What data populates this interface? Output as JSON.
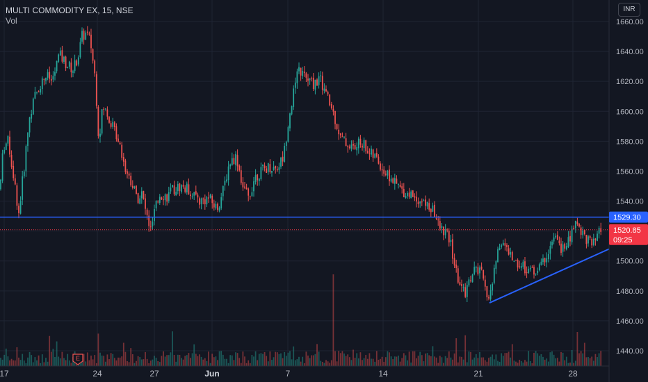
{
  "header": {
    "symbol_line": "MULTI COMMODITY EX, 15, NSE",
    "volume_label": "Vol"
  },
  "currency_button": "INR",
  "colors": {
    "background": "#131722",
    "grid": "#1f2433",
    "up_candle": "#26a69a",
    "down_candle": "#ef5350",
    "line_blue": "#2962ff",
    "price_red": "#f23645"
  },
  "price_tags": {
    "horizontal_line": "1529.30",
    "last_price": "1520.85",
    "countdown": "09:25"
  },
  "earnings_marker": "E",
  "chart_data": {
    "type": "candlestick",
    "title": "MULTI COMMODITY EX, 15, NSE",
    "y_axis": {
      "range": [
        1432,
        1668
      ],
      "ticks": [
        1440,
        1460,
        1480,
        1500,
        1520,
        1540,
        1560,
        1580,
        1600,
        1620,
        1640,
        1660
      ]
    },
    "x_axis": {
      "ticks": [
        {
          "label": "17",
          "bold": false
        },
        {
          "label": "24",
          "bold": false
        },
        {
          "label": "27",
          "bold": false
        },
        {
          "label": "Jun",
          "bold": true
        },
        {
          "label": "7",
          "bold": false
        },
        {
          "label": "14",
          "bold": false
        },
        {
          "label": "21",
          "bold": false
        },
        {
          "label": "28",
          "bold": false
        }
      ]
    },
    "price_path": [
      [
        0,
        1548
      ],
      [
        5,
        1577
      ],
      [
        12,
        1580
      ],
      [
        20,
        1555
      ],
      [
        27,
        1532
      ],
      [
        34,
        1560
      ],
      [
        42,
        1595
      ],
      [
        50,
        1610
      ],
      [
        58,
        1618
      ],
      [
        66,
        1624
      ],
      [
        75,
        1620
      ],
      [
        85,
        1638
      ],
      [
        95,
        1632
      ],
      [
        105,
        1628
      ],
      [
        112,
        1636
      ],
      [
        118,
        1650
      ],
      [
        124,
        1652
      ],
      [
        130,
        1647
      ],
      [
        137,
        1622
      ],
      [
        142,
        1582
      ],
      [
        148,
        1603
      ],
      [
        155,
        1598
      ],
      [
        162,
        1590
      ],
      [
        172,
        1580
      ],
      [
        180,
        1562
      ],
      [
        190,
        1552
      ],
      [
        197,
        1542
      ],
      [
        204,
        1545
      ],
      [
        210,
        1532
      ],
      [
        217,
        1520
      ],
      [
        222,
        1532
      ],
      [
        230,
        1545
      ],
      [
        240,
        1543
      ],
      [
        250,
        1548
      ],
      [
        262,
        1550
      ],
      [
        276,
        1546
      ],
      [
        288,
        1540
      ],
      [
        300,
        1542
      ],
      [
        312,
        1535
      ],
      [
        320,
        1545
      ],
      [
        330,
        1566
      ],
      [
        340,
        1570
      ],
      [
        350,
        1548
      ],
      [
        358,
        1542
      ],
      [
        366,
        1556
      ],
      [
        376,
        1560
      ],
      [
        386,
        1563
      ],
      [
        398,
        1562
      ],
      [
        408,
        1570
      ],
      [
        415,
        1595
      ],
      [
        422,
        1612
      ],
      [
        430,
        1628
      ],
      [
        440,
        1622
      ],
      [
        450,
        1618
      ],
      [
        460,
        1622
      ],
      [
        470,
        1610
      ],
      [
        480,
        1598
      ],
      [
        490,
        1582
      ],
      [
        500,
        1578
      ],
      [
        510,
        1575
      ],
      [
        520,
        1580
      ],
      [
        532,
        1572
      ],
      [
        542,
        1568
      ],
      [
        552,
        1560
      ],
      [
        562,
        1555
      ],
      [
        572,
        1550
      ],
      [
        582,
        1546
      ],
      [
        595,
        1544
      ],
      [
        605,
        1540
      ],
      [
        615,
        1537
      ],
      [
        625,
        1532
      ],
      [
        632,
        1522
      ],
      [
        640,
        1520
      ],
      [
        648,
        1512
      ],
      [
        656,
        1492
      ],
      [
        662,
        1484
      ],
      [
        668,
        1478
      ],
      [
        676,
        1488
      ],
      [
        684,
        1495
      ],
      [
        692,
        1492
      ],
      [
        698,
        1480
      ],
      [
        704,
        1475
      ],
      [
        710,
        1490
      ],
      [
        716,
        1508
      ],
      [
        722,
        1514
      ],
      [
        730,
        1506
      ],
      [
        740,
        1500
      ],
      [
        750,
        1497
      ],
      [
        760,
        1494
      ],
      [
        770,
        1493
      ],
      [
        780,
        1498
      ],
      [
        790,
        1508
      ],
      [
        797,
        1516
      ],
      [
        804,
        1510
      ],
      [
        812,
        1508
      ],
      [
        820,
        1515
      ],
      [
        828,
        1527
      ],
      [
        836,
        1520
      ],
      [
        844,
        1515
      ],
      [
        852,
        1510
      ],
      [
        858,
        1514
      ],
      [
        864,
        1520.85
      ]
    ],
    "horizontal_line": {
      "price": 1529.3
    },
    "trendline": {
      "from": {
        "x_label": "21",
        "price": 1472
      },
      "to": {
        "x_label": "28",
        "price": 1508
      }
    },
    "last_price": 1520.85,
    "volume_series_name": "Vol"
  }
}
